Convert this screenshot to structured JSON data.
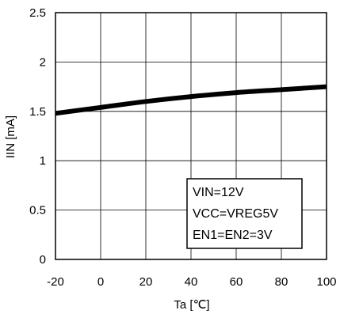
{
  "chart_data": {
    "type": "line",
    "xlabel": "Ta [℃]",
    "ylabel": "IIN [mA]",
    "xlim": [
      -20,
      100
    ],
    "ylim": [
      0,
      2.5
    ],
    "x_ticks": [
      "-20",
      "0",
      "20",
      "40",
      "60",
      "80",
      "100"
    ],
    "y_ticks": [
      "0",
      "0.5",
      "1",
      "1.5",
      "2",
      "2.5"
    ],
    "grid": true,
    "series": [
      {
        "x": [
          -20,
          0,
          20,
          40,
          60,
          80,
          100
        ],
        "y": [
          1.48,
          1.54,
          1.6,
          1.65,
          1.69,
          1.72,
          1.75
        ]
      }
    ],
    "annotation": [
      "VIN=12V",
      "VCC=VREG5V",
      "EN1=EN2=3V"
    ],
    "colors": {
      "line": "#000000",
      "grid": "#000000",
      "frame": "#000000"
    }
  }
}
